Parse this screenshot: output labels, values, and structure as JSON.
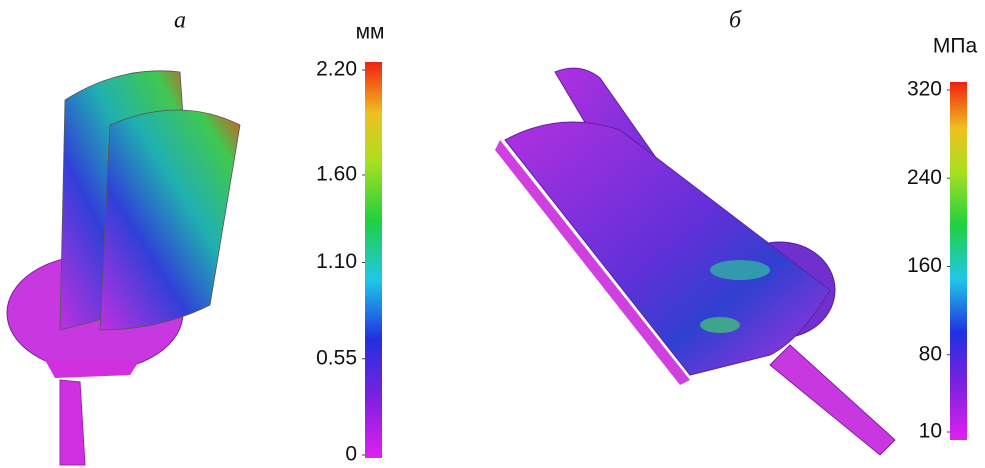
{
  "panels": [
    {
      "label": "а",
      "unit": "мм",
      "colorbar": {
        "lim": [
          0,
          2.2
        ],
        "ticks": [
          {
            "value": 2.2,
            "label": "2.20"
          },
          {
            "value": 1.6,
            "label": "1.60"
          },
          {
            "value": 1.1,
            "label": "1.10"
          },
          0.55,
          0
        ]
      }
    },
    {
      "label": "б",
      "unit": "МПа",
      "colorbar": {
        "lim": [
          10,
          320
        ],
        "ticks": [
          320,
          240,
          160,
          80,
          10
        ]
      }
    }
  ]
}
